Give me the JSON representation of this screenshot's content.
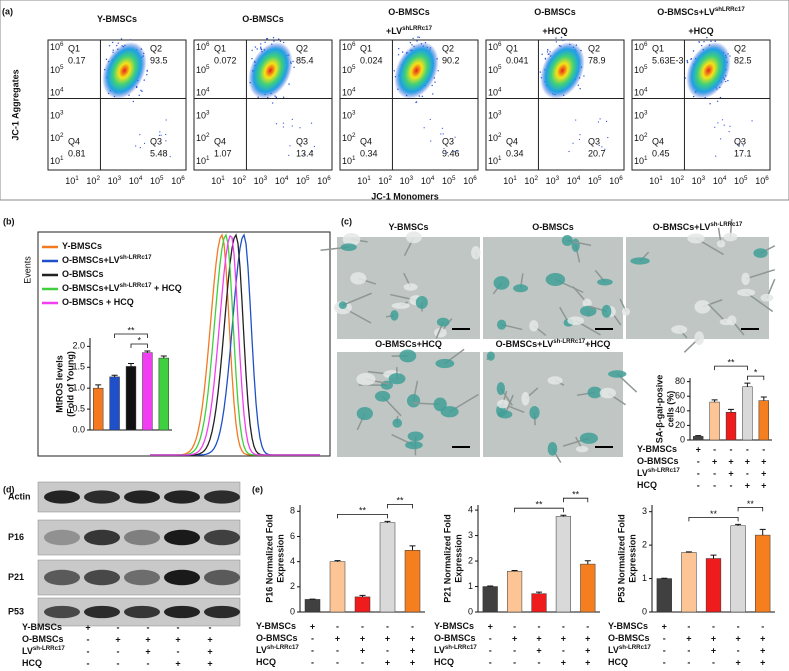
{
  "panels": [
    "(a)",
    "(b)",
    "(c)",
    "(d)",
    "(e)"
  ],
  "flow": {
    "y_label": "JC-1 Aggregates",
    "x_label": "JC-1 Monomers",
    "tick_base": "10",
    "tick_exponents": [
      1,
      2,
      3,
      4,
      5,
      6
    ],
    "plots": [
      {
        "title": [
          [
            {
              "text": "Y-BMSCs"
            }
          ]
        ],
        "quadrants": [
          {
            "name": "Q1",
            "value": 0.17
          },
          {
            "name": "Q2",
            "value": 93.5
          },
          {
            "name": "Q4",
            "value": 0.81
          },
          {
            "name": "Q3",
            "value": 5.48
          }
        ]
      },
      {
        "title": [
          [
            {
              "text": "O-BMSCs"
            }
          ]
        ],
        "quadrants": [
          {
            "name": "Q1",
            "value": 0.072
          },
          {
            "name": "Q2",
            "value": 85.4
          },
          {
            "name": "Q4",
            "value": 1.07
          },
          {
            "name": "Q3",
            "value": 13.4
          }
        ]
      },
      {
        "title": [
          [
            {
              "text": "O-BMSCs"
            }
          ],
          [
            {
              "text": "+LV"
            },
            {
              "sup": "shLRRc17"
            }
          ]
        ],
        "quadrants": [
          {
            "name": "Q1",
            "value": 0.024
          },
          {
            "name": "Q2",
            "value": 90.2
          },
          {
            "name": "Q4",
            "value": 0.34
          },
          {
            "name": "Q3",
            "value": 9.46
          }
        ]
      },
      {
        "title": [
          [
            {
              "text": "O-BMSCs"
            }
          ],
          [
            {
              "text": "+HCQ"
            }
          ]
        ],
        "quadrants": [
          {
            "name": "Q1",
            "value": 0.041
          },
          {
            "name": "Q2",
            "value": 78.9
          },
          {
            "name": "Q4",
            "value": 0.34
          },
          {
            "name": "Q3",
            "value": 20.7
          }
        ]
      },
      {
        "title": [
          [
            {
              "text": "O-BMSCs+LV"
            },
            {
              "sup": "shLRRc17"
            }
          ],
          [
            {
              "text": "+HCQ"
            }
          ]
        ],
        "quadrants": [
          {
            "name": "Q1",
            "value": "5.63E-3"
          },
          {
            "name": "Q2",
            "value": 82.5
          },
          {
            "name": "Q4",
            "value": 0.45
          },
          {
            "name": "Q3",
            "value": 17.1
          }
        ]
      }
    ]
  },
  "histogram": {
    "events_label": "Events",
    "legend": [
      {
        "name": [
          {
            "text": "Y-BMSCs"
          }
        ],
        "color": "#f47920"
      },
      {
        "name": [
          {
            "text": "O-BMSCs+LV"
          },
          {
            "sup": "sh-LRRc17"
          }
        ],
        "color": "#1f4fc9"
      },
      {
        "name": [
          {
            "text": "O-BMSCs"
          }
        ],
        "color": "#222222"
      },
      {
        "name": [
          {
            "text": "O-BMSCs+LV"
          },
          {
            "sup": "sh-LRRc17"
          },
          {
            "text": " + HCQ"
          }
        ],
        "color": "#3fcf3f"
      },
      {
        "name": [
          {
            "text": "O-BMSCs + HCQ"
          }
        ],
        "color": "#f23ef2"
      }
    ]
  },
  "images": [
    {
      "title": [
        {
          "text": "Y-BMSCs"
        }
      ]
    },
    {
      "title": [
        {
          "text": "O-BMSCs"
        }
      ]
    },
    {
      "title": [
        {
          "text": "O-BMSCs+LV"
        },
        {
          "sup": "sh-LRRc17"
        }
      ]
    },
    {
      "title": [
        {
          "text": "O-BMSCs+HCQ"
        }
      ]
    },
    {
      "title": [
        {
          "text": "O-BMSCs+LV"
        },
        {
          "sup": "sh-LRRc17"
        },
        {
          "text": "+HCQ"
        }
      ]
    }
  ],
  "blot": {
    "bands": [
      "Actin",
      "P16",
      "P21",
      "P53"
    ]
  },
  "conditions": {
    "rows": [
      {
        "label": [
          {
            "text": "Y-BMSCs"
          }
        ],
        "signs": [
          "+",
          "-",
          "-",
          "-",
          "-"
        ]
      },
      {
        "label": [
          {
            "text": "O-BMSCs"
          }
        ],
        "signs": [
          "-",
          "+",
          "+",
          "+",
          "+"
        ]
      },
      {
        "label": [
          {
            "text": "LV"
          },
          {
            "sup": "sh-LRRc17"
          }
        ],
        "signs": [
          "-",
          "-",
          "+",
          "-",
          "+"
        ]
      },
      {
        "label": [
          {
            "text": "HCQ"
          }
        ],
        "signs": [
          "-",
          "-",
          "-",
          "+",
          "+"
        ]
      }
    ]
  },
  "chart_data": [
    {
      "type": "bar",
      "ylabel": [
        "MtROS levels",
        "(Fold of Young)"
      ],
      "ylim": [
        0,
        2.2
      ],
      "yticks": [
        {
          "value": 0,
          "label": "0.0"
        },
        {
          "value": 0.5,
          "label": "0.5"
        },
        {
          "value": 1,
          "label": "1.0"
        },
        {
          "value": 1.5,
          "label": "1.5"
        },
        {
          "value": 2,
          "label": "2.0"
        }
      ],
      "values": [
        1.0,
        1.27,
        1.52,
        1.85,
        1.72
      ],
      "errors": [
        0.08,
        0.04,
        0.07,
        0.04,
        0.05
      ],
      "colors": [
        "#f47920",
        "#1f4fc9",
        "#111111",
        "#f23ef2",
        "#3fcf3f"
      ],
      "annotations": [
        "**",
        "*"
      ]
    },
    {
      "type": "bar",
      "ylabel": [
        "SA-β-gal-posive",
        "cells (%)"
      ],
      "ylim": [
        0,
        85
      ],
      "yticks": [
        0,
        20,
        40,
        60,
        80
      ],
      "values": [
        5,
        52,
        38,
        73,
        54
      ],
      "errors": [
        1,
        3,
        4,
        5,
        5
      ],
      "colors": [
        "#444444",
        "#fdc596",
        "#ee1c1c",
        "#d9d9d9",
        "#f57f1f"
      ],
      "annotations": [
        "**",
        "*"
      ]
    },
    {
      "type": "bar",
      "ylabel": [
        "P16 Normalized Fold",
        "Expression"
      ],
      "ylim": [
        0,
        8.5
      ],
      "yticks": [
        0,
        2,
        4,
        6,
        8
      ],
      "values": [
        1.0,
        4.0,
        1.2,
        7.1,
        4.9
      ],
      "errors": [
        0.02,
        0.08,
        0.12,
        0.1,
        0.35
      ],
      "colors": [
        "#404040",
        "#fdc596",
        "#ee1c1c",
        "#d9d9d9",
        "#f57f1f"
      ],
      "annotations": [
        "**",
        "**"
      ]
    },
    {
      "type": "bar",
      "ylabel": [
        "P21 Normalized Fold",
        "Expression"
      ],
      "ylim": [
        0,
        4.2
      ],
      "yticks": [
        0,
        1,
        2,
        3,
        4
      ],
      "values": [
        1.0,
        1.6,
        0.72,
        3.75,
        1.88
      ],
      "errors": [
        0.02,
        0.03,
        0.06,
        0.05,
        0.13
      ],
      "colors": [
        "#404040",
        "#fdc596",
        "#ee1c1c",
        "#d9d9d9",
        "#f57f1f"
      ],
      "annotations": [
        "**",
        "**"
      ]
    },
    {
      "type": "bar",
      "ylabel": [
        "P53 Normalized Fold",
        "Expression"
      ],
      "ylim": [
        0,
        3.2
      ],
      "yticks": [
        0,
        1,
        2,
        3
      ],
      "values": [
        1.0,
        1.78,
        1.6,
        2.58,
        2.3
      ],
      "errors": [
        0.01,
        0.02,
        0.1,
        0.04,
        0.17
      ],
      "colors": [
        "#404040",
        "#fdc596",
        "#ee1c1c",
        "#d9d9d9",
        "#f57f1f"
      ],
      "annotations": [
        "**",
        "**"
      ]
    }
  ]
}
